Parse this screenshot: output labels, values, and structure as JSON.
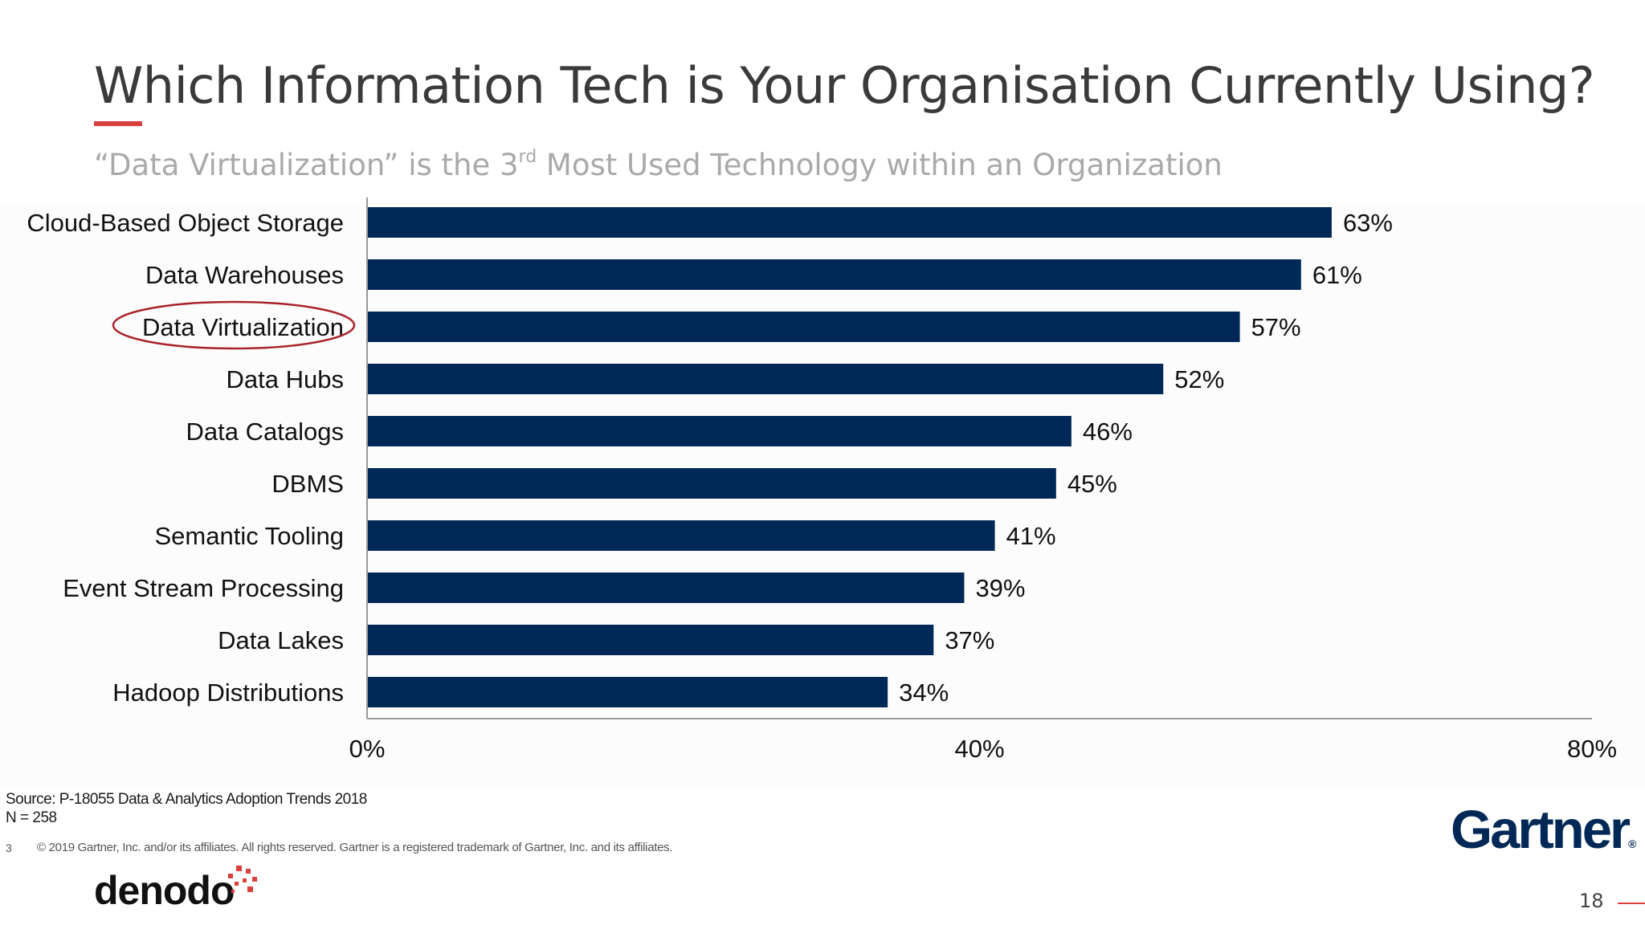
{
  "slide": {
    "title": "Which Information Tech is Your Organisation Currently Using?",
    "subtitle_pre": "“Data Virtualization” is the 3",
    "subtitle_sup": "rd",
    "subtitle_post": " Most Used Technology within an Organization",
    "source": "Source: P-18055 Data & Analytics Adoption Trends 2018",
    "sample": "N = 258",
    "slide_number_left": "3",
    "copyright": "© 2019 Gartner, Inc. and/or its affiliates. All rights reserved. Gartner is a registered trademark of Gartner, Inc. and its affiliates.",
    "gartner_logo": "Gartner",
    "gartner_mark": "®",
    "denodo_logo": "denodo",
    "page_number": "18"
  },
  "colors": {
    "bar": "#002856",
    "accent_red": "#d9403e",
    "highlight_ellipse": "#a8232b",
    "axis": "#999999",
    "label": "#111111"
  },
  "chart_data": {
    "type": "bar",
    "orientation": "horizontal",
    "categories": [
      "Cloud-Based Object Storage",
      "Data Warehouses",
      "Data Virtualization",
      "Data Hubs",
      "Data Catalogs",
      "DBMS",
      "Semantic Tooling",
      "Event Stream Processing",
      "Data Lakes",
      "Hadoop Distributions"
    ],
    "values": [
      63,
      61,
      57,
      52,
      46,
      45,
      41,
      39,
      37,
      34
    ],
    "value_labels": [
      "63%",
      "61%",
      "57%",
      "52%",
      "46%",
      "45%",
      "41%",
      "39%",
      "37%",
      "34%"
    ],
    "xlim": [
      0,
      80
    ],
    "xticks": [
      0,
      40,
      80
    ],
    "xtick_labels": [
      "0%",
      "40%",
      "80%"
    ],
    "highlighted_category": "Data Virtualization",
    "grid": false,
    "legend": "none"
  }
}
